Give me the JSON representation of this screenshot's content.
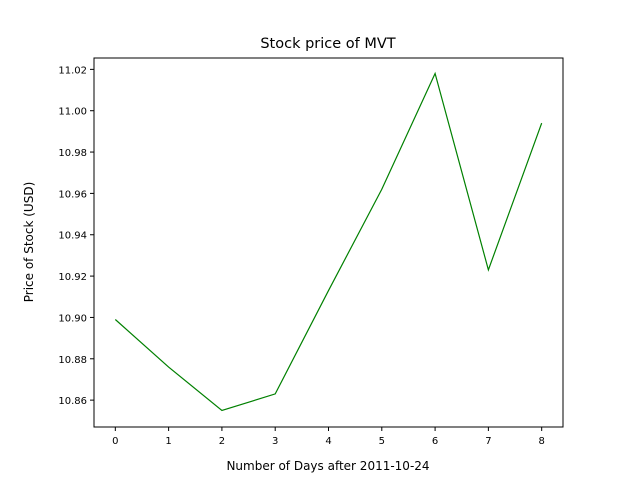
{
  "chart_data": {
    "type": "line",
    "title": "Stock price of MVT",
    "xlabel": "Number of Days after 2011-10-24",
    "ylabel": "Price of Stock (USD)",
    "x": [
      0,
      1,
      2,
      3,
      4,
      5,
      6,
      7,
      8
    ],
    "series": [
      {
        "values": [
          10.899,
          10.876,
          10.855,
          10.863,
          10.913,
          10.962,
          11.018,
          10.923,
          10.994
        ],
        "color": "#008000"
      }
    ],
    "xlim": [
      -0.4,
      8.4
    ],
    "ylim": [
      10.847,
      11.0255
    ],
    "xticks": [
      0,
      1,
      2,
      3,
      4,
      5,
      6,
      7,
      8
    ],
    "xtick_labels": [
      "0",
      "1",
      "2",
      "3",
      "4",
      "5",
      "6",
      "7",
      "8"
    ],
    "yticks": [
      10.86,
      10.88,
      10.9,
      10.92,
      10.94,
      10.96,
      10.98,
      11.0,
      11.02
    ],
    "ytick_labels": [
      "10.86",
      "10.88",
      "10.90",
      "10.92",
      "10.94",
      "10.96",
      "10.98",
      "11.00",
      "11.02"
    ],
    "grid": false,
    "legend": "none"
  }
}
